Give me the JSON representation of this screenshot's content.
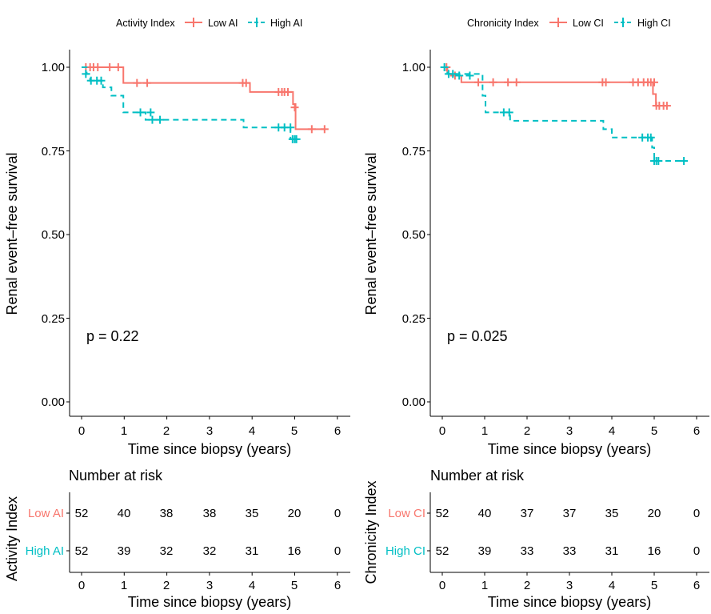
{
  "colors": {
    "low": "#F8766D",
    "high": "#00BFC4"
  },
  "chart_data": [
    {
      "type": "line",
      "subtype": "kaplan-meier",
      "legend_title": "Activity Index",
      "legend_position": "top",
      "ylabel": "Renal event–free survival",
      "xlabel": "Time since biopsy (years)",
      "xlim": [
        0,
        6
      ],
      "ylim": [
        0,
        1
      ],
      "x_ticks": [
        "0",
        "1",
        "2",
        "3",
        "4",
        "5",
        "6"
      ],
      "y_ticks": [
        "0.00",
        "0.25",
        "0.50",
        "0.75",
        "1.00"
      ],
      "p_value": "p = 0.22",
      "series": [
        {
          "name": "Low AI",
          "color": "#F8766D",
          "dash": false,
          "steps": [
            [
              0,
              1.0
            ],
            [
              0.98,
              0.953
            ],
            [
              3.95,
              0.926
            ],
            [
              4.96,
              0.89
            ],
            [
              5.02,
              0.815
            ],
            [
              5.7,
              0.815
            ]
          ],
          "censor": [
            [
              0.1,
              1
            ],
            [
              0.2,
              1
            ],
            [
              0.28,
              1
            ],
            [
              0.38,
              1
            ],
            [
              0.66,
              1
            ],
            [
              0.86,
              1
            ],
            [
              1.3,
              0.953
            ],
            [
              1.54,
              0.953
            ],
            [
              3.78,
              0.953
            ],
            [
              3.86,
              0.953
            ],
            [
              4.62,
              0.926
            ],
            [
              4.7,
              0.926
            ],
            [
              4.76,
              0.926
            ],
            [
              4.84,
              0.926
            ],
            [
              5.0,
              0.88
            ],
            [
              5.4,
              0.815
            ],
            [
              5.7,
              0.815
            ]
          ]
        },
        {
          "name": "High AI",
          "color": "#00BFC4",
          "dash": true,
          "steps": [
            [
              0,
              1.0
            ],
            [
              0.12,
              0.98
            ],
            [
              0.2,
              0.96
            ],
            [
              0.5,
              0.94
            ],
            [
              0.7,
              0.915
            ],
            [
              0.98,
              0.865
            ],
            [
              1.5,
              0.843
            ],
            [
              3.8,
              0.82
            ],
            [
              4.9,
              0.785
            ],
            [
              5.05,
              0.785
            ]
          ],
          "censor": [
            [
              0.1,
              0.98
            ],
            [
              0.22,
              0.96
            ],
            [
              0.36,
              0.96
            ],
            [
              0.46,
              0.96
            ],
            [
              1.38,
              0.865
            ],
            [
              1.62,
              0.865
            ],
            [
              1.66,
              0.843
            ],
            [
              1.84,
              0.843
            ],
            [
              4.62,
              0.82
            ],
            [
              4.76,
              0.82
            ],
            [
              4.9,
              0.82
            ],
            [
              4.95,
              0.785
            ],
            [
              5.0,
              0.785
            ],
            [
              5.04,
              0.785
            ]
          ]
        }
      ],
      "risk_table": {
        "title": "Number at risk",
        "ylabel": "Activity Index",
        "xlabel": "Time since biopsy (years)",
        "rows": [
          {
            "label": "Low AI",
            "values": [
              "52",
              "40",
              "38",
              "38",
              "35",
              "20",
              "0"
            ]
          },
          {
            "label": "High AI",
            "values": [
              "52",
              "39",
              "32",
              "32",
              "31",
              "16",
              "0"
            ]
          }
        ]
      }
    },
    {
      "type": "line",
      "subtype": "kaplan-meier",
      "legend_title": "Chronicity Index",
      "legend_position": "top",
      "ylabel": "Renal event–free survival",
      "xlabel": "Time since biopsy (years)",
      "xlim": [
        0,
        6
      ],
      "ylim": [
        0,
        1
      ],
      "x_ticks": [
        "0",
        "1",
        "2",
        "3",
        "4",
        "5",
        "6"
      ],
      "y_ticks": [
        "0.00",
        "0.25",
        "0.50",
        "0.75",
        "1.00"
      ],
      "p_value": "p = 0.025",
      "series": [
        {
          "name": "Low CI",
          "color": "#F8766D",
          "dash": false,
          "steps": [
            [
              0,
              1.0
            ],
            [
              0.12,
              0.98
            ],
            [
              0.2,
              0.975
            ],
            [
              0.45,
              0.955
            ],
            [
              4.97,
              0.92
            ],
            [
              5.04,
              0.885
            ],
            [
              5.3,
              0.885
            ]
          ],
          "censor": [
            [
              0.1,
              1
            ],
            [
              0.3,
              0.975
            ],
            [
              0.85,
              0.955
            ],
            [
              1.2,
              0.955
            ],
            [
              1.55,
              0.955
            ],
            [
              1.75,
              0.955
            ],
            [
              3.78,
              0.955
            ],
            [
              3.86,
              0.955
            ],
            [
              4.5,
              0.955
            ],
            [
              4.62,
              0.955
            ],
            [
              4.75,
              0.955
            ],
            [
              4.85,
              0.955
            ],
            [
              4.92,
              0.955
            ],
            [
              5.0,
              0.955
            ],
            [
              5.05,
              0.885
            ],
            [
              5.12,
              0.885
            ],
            [
              5.22,
              0.885
            ],
            [
              5.3,
              0.885
            ]
          ]
        },
        {
          "name": "High CI",
          "color": "#00BFC4",
          "dash": true,
          "steps": [
            [
              0,
              1.0
            ],
            [
              0.12,
              0.98
            ],
            [
              0.95,
              0.915
            ],
            [
              1.02,
              0.865
            ],
            [
              1.6,
              0.84
            ],
            [
              3.8,
              0.815
            ],
            [
              4.0,
              0.79
            ],
            [
              4.95,
              0.76
            ],
            [
              5.0,
              0.72
            ],
            [
              5.7,
              0.72
            ]
          ],
          "censor": [
            [
              0.05,
              1
            ],
            [
              0.15,
              0.98
            ],
            [
              0.25,
              0.98
            ],
            [
              0.4,
              0.975
            ],
            [
              0.65,
              0.975
            ],
            [
              1.45,
              0.865
            ],
            [
              1.58,
              0.865
            ],
            [
              4.72,
              0.79
            ],
            [
              4.85,
              0.79
            ],
            [
              4.92,
              0.79
            ],
            [
              5.0,
              0.72
            ],
            [
              5.05,
              0.72
            ],
            [
              5.1,
              0.72
            ],
            [
              5.7,
              0.72
            ]
          ]
        }
      ],
      "risk_table": {
        "title": "Number at risk",
        "ylabel": "Chronicity Index",
        "xlabel": "Time since biopsy (years)",
        "rows": [
          {
            "label": "Low CI",
            "values": [
              "52",
              "40",
              "37",
              "37",
              "35",
              "20",
              "0"
            ]
          },
          {
            "label": "High CI",
            "values": [
              "52",
              "39",
              "33",
              "33",
              "31",
              "16",
              "0"
            ]
          }
        ]
      }
    }
  ]
}
